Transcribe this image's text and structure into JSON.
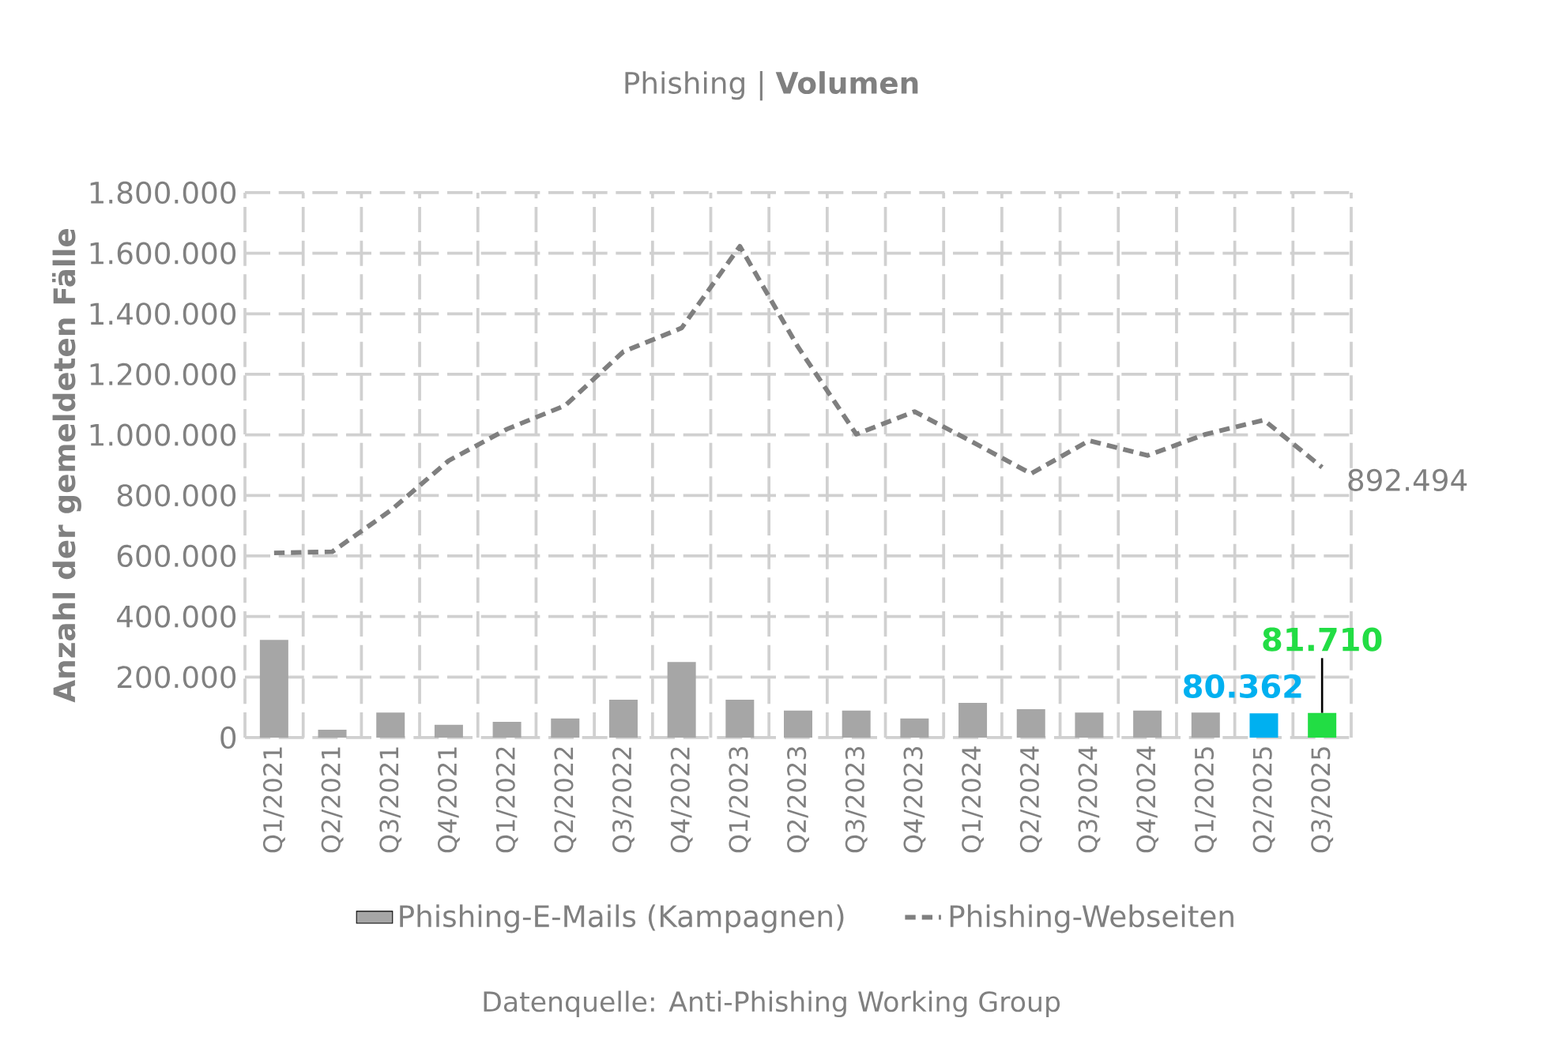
{
  "chart_data": {
    "type": "bar",
    "title": "Phishing | **Volumen**",
    "ylabel": "Anzahl der gemeldeten Fälle",
    "categories": [
      "Q1/2021",
      "Q2/2021",
      "Q3/2021",
      "Q4/2021",
      "Q1/2022",
      "Q2/2022",
      "Q3/2022",
      "Q4/2022",
      "Q1/2023",
      "Q2/2023",
      "Q3/2023",
      "Q4/2023",
      "Q1/2024",
      "Q2/2024",
      "Q3/2024",
      "Q4/2024",
      "Q1/2025",
      "Q2/2025",
      "Q3/2025"
    ],
    "series": [
      {
        "name": "Phishing-E-Mails (Kampagnen)",
        "color": "#a6a6a6",
        "colors": [
          "#a6a6a6",
          "#a6a6a6",
          "#a6a6a6",
          "#a6a6a6",
          "#a6a6a6",
          "#a6a6a6",
          "#a6a6a6",
          "#a6a6a6",
          "#a6a6a6",
          "#a6a6a6",
          "#a6a6a6",
          "#a6a6a6",
          "#a6a6a6",
          "#a6a6a6",
          "#a6a6a6",
          "#a6a6a6",
          "#a6a6a6",
          "#00b0f0",
          "#22dd44"
        ],
        "values": [
          323000,
          26000,
          83000,
          42000,
          52000,
          63000,
          125000,
          250000,
          125000,
          89000,
          89000,
          63000,
          115000,
          94000,
          83000,
          89000,
          83000,
          80362,
          81710
        ],
        "value_labels": [
          null,
          null,
          null,
          null,
          null,
          null,
          null,
          null,
          null,
          null,
          null,
          null,
          null,
          null,
          null,
          null,
          null,
          "80.362",
          "81.710"
        ]
      },
      {
        "name": "Phishing-Webseiten",
        "type": "line",
        "color": "#7f7f7f",
        "line_style": "dashed",
        "values": [
          610000,
          614000,
          750000,
          915000,
          1019000,
          1097000,
          1275000,
          1353000,
          1623000,
          1290000,
          1002000,
          1077000,
          976000,
          872000,
          981000,
          932000,
          1002000,
          1049000,
          892494
        ],
        "value_labels": [
          null,
          null,
          null,
          null,
          null,
          null,
          null,
          null,
          null,
          null,
          null,
          null,
          null,
          null,
          null,
          null,
          null,
          null,
          "892.494"
        ]
      }
    ],
    "ylim": [
      0,
      1800000
    ],
    "yticks": [
      {
        "value": 0,
        "label": "0"
      },
      {
        "value": 200000,
        "label": "200.000"
      },
      {
        "value": 400000,
        "label": "400.000"
      },
      {
        "value": 600000,
        "label": "600.000"
      },
      {
        "value": 800000,
        "label": "800.000"
      },
      {
        "value": 1000000,
        "label": "1.000.000"
      },
      {
        "value": 1200000,
        "label": "1.200.000"
      },
      {
        "value": 1400000,
        "label": "1.400.000"
      },
      {
        "value": 1600000,
        "label": "1.600.000"
      },
      {
        "value": 1800000,
        "label": "1.800.000"
      }
    ],
    "grid": true,
    "legend": "bottom",
    "annotations": [
      "Datenquelle: Anti-Phishing Working Group"
    ]
  }
}
